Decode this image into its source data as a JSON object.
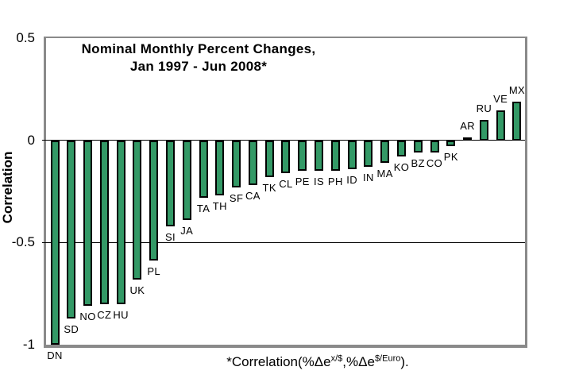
{
  "figure": {
    "title_line1": "Nominal Monthly Percent Changes,",
    "title_line2": "Jan 1997 - Jun 2008*",
    "y_axis_label": "Correlation",
    "footnote": {
      "prefix": "*Correlation(%Δe",
      "sup1": "x/$",
      "mid": ",%Δe",
      "sup2": "$/Euro",
      "suffix": ")."
    }
  },
  "chart_data": {
    "type": "bar",
    "title": "Nominal Monthly Percent Changes, Jan 1997 - Jun 2008*",
    "ylabel": "Correlation",
    "xlabel": "",
    "footnote": "*Correlation(%Δe^(x/$),%Δe^($/Euro)).",
    "ylim": [
      -1,
      0.5
    ],
    "yticks": [
      {
        "value": 0.5,
        "label": "0.5"
      },
      {
        "value": 0,
        "label": "0"
      },
      {
        "value": -0.5,
        "label": "-0.5"
      },
      {
        "value": -1,
        "label": "-1"
      }
    ],
    "gridlines_at": [
      0,
      -0.5
    ],
    "legend": "none",
    "grid": "horizontal-lines-at-0-and-minus-0.5",
    "bar_fill_color": "#339966",
    "bar_border_color": "#000000",
    "axis_frame_color": "#8a8a8a",
    "categories": [
      "DN",
      "SD",
      "NO",
      "CZ",
      "HU",
      "UK",
      "PL",
      "SI",
      "JA",
      "TA",
      "TH",
      "SF",
      "CA",
      "TK",
      "CL",
      "PE",
      "IS",
      "PH",
      "ID",
      "IN",
      "MA",
      "KO",
      "BZ",
      "CO",
      "PK",
      "AR",
      "RU",
      "VE",
      "MX"
    ],
    "values": [
      -1.0,
      -0.87,
      -0.81,
      -0.8,
      -0.8,
      -0.68,
      -0.59,
      -0.42,
      -0.39,
      -0.28,
      -0.27,
      -0.23,
      -0.22,
      -0.18,
      -0.16,
      -0.15,
      -0.15,
      -0.15,
      -0.14,
      -0.13,
      -0.11,
      -0.08,
      -0.06,
      -0.06,
      -0.03,
      0.015,
      0.1,
      0.145,
      0.19
    ]
  }
}
